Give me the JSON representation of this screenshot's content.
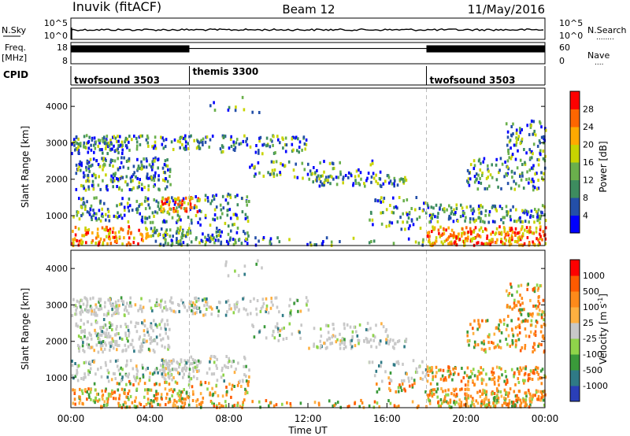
{
  "header": {
    "station": "Inuvik (fitACF)",
    "beam": "Beam 12",
    "date": "11/May/2016"
  },
  "chart_data": [
    {
      "type": "line",
      "name": "nsky-nsearch",
      "left_label": "N.Sky",
      "right_label": "N.Search",
      "right_dots": "........",
      "left_ticks": [
        "10^5",
        "10^0"
      ],
      "right_ticks": [
        "10^5",
        "10^0"
      ],
      "level_fraction": 0.45
    },
    {
      "type": "line",
      "name": "freq-nave",
      "left_label_1": "Freq.",
      "left_label_2": "[MHz]",
      "left_ticks": [
        "18",
        "8"
      ],
      "right_ticks": [
        "60",
        "0"
      ],
      "right_label": "Nave",
      "right_dots": "....",
      "dense_segments_hours": [
        [
          0,
          6
        ],
        [
          18,
          24
        ]
      ],
      "freq_level_fraction": 0.72
    },
    {
      "type": "table",
      "name": "cpid",
      "label": "CPID",
      "segments": [
        {
          "start": 0,
          "end": 6,
          "name": "twofsound 3503"
        },
        {
          "start": 6,
          "end": 18,
          "name": "themis 3300"
        },
        {
          "start": 18,
          "end": 24,
          "name": "twofsound 3503"
        }
      ]
    },
    {
      "type": "heatmap",
      "name": "power",
      "ylabel": "Slant Range [km]",
      "yticks": [
        1000,
        2000,
        3000,
        4000
      ],
      "ylim": [
        180,
        4500
      ],
      "xlim": [
        0,
        24
      ],
      "colorbar_label": "Power [dB]",
      "colorbar_ticks": [
        "28",
        "24",
        "20",
        "16",
        "12",
        "8",
        "4"
      ],
      "colors": [
        "#0000ff",
        "#234fa8",
        "#3d8c5f",
        "#6ab04c",
        "#c8d400",
        "#ffaa00",
        "#ff6600",
        "#ff0000"
      ]
    },
    {
      "type": "heatmap",
      "name": "velocity",
      "ylabel": "Slant Range [km]",
      "yticks": [
        1000,
        2000,
        3000,
        4000
      ],
      "ylim": [
        180,
        4500
      ],
      "xlim": [
        0,
        24
      ],
      "xticks": [
        "00:00",
        "04:00",
        "08:00",
        "12:00",
        "16:00",
        "20:00",
        "00:00"
      ],
      "xlabel": "Time UT",
      "colorbar_label": "Velocity [m s",
      "colorbar_label_sup": "-1",
      "colorbar_label_end": "]",
      "colorbar_ticks": [
        "1000",
        "500",
        "100",
        "25",
        "-25",
        "-100",
        "-500",
        "-1000"
      ],
      "colors": [
        "#2a3fb8",
        "#2f7a86",
        "#3a9a3a",
        "#8fd44a",
        "#c8c8c8",
        "#ffb040",
        "#ff8a1a",
        "#ff5a00",
        "#ff0000"
      ]
    }
  ]
}
